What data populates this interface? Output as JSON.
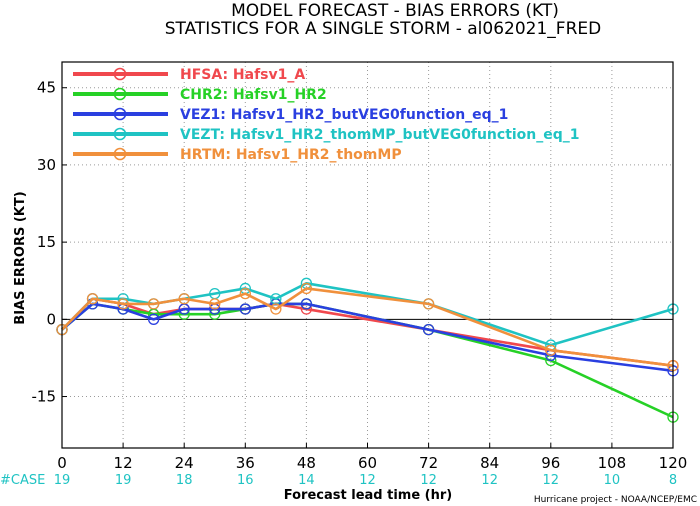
{
  "chart_data": {
    "type": "line",
    "title": "MODEL FORECAST - BIAS ERRORS (KT)",
    "subtitle": "STATISTICS FOR A SINGLE STORM - al062021_FRED",
    "xlabel": "Forecast lead time (hr)",
    "ylabel": "BIAS ERRORS (KT)",
    "xlim": [
      0,
      120
    ],
    "ylim": [
      -25,
      50
    ],
    "x_ticks": [
      0,
      12,
      24,
      36,
      48,
      60,
      72,
      84,
      96,
      108,
      120
    ],
    "y_ticks": [
      -15,
      0,
      15,
      30,
      45
    ],
    "grid": true,
    "legend_position": "top-left",
    "case_label": "#CASE",
    "case_counts": [
      19,
      19,
      18,
      16,
      14,
      12,
      12,
      12,
      12,
      10,
      8
    ],
    "credit": "Hurricane project - NOAA/NCEP/EMC",
    "series": [
      {
        "name": "HFSA: Hafsv1_A",
        "color": "#f0484d",
        "x": [
          0,
          6,
          12,
          18,
          24,
          30,
          36,
          42,
          48,
          72,
          96,
          120
        ],
        "y": [
          -2,
          4,
          3,
          1,
          2,
          2,
          2,
          3,
          2,
          -2,
          -6,
          -9
        ]
      },
      {
        "name": "CHR2: Hafsv1_HR2",
        "color": "#26d126",
        "x": [
          0,
          6,
          12,
          18,
          24,
          30,
          36,
          42,
          48,
          72,
          96,
          120
        ],
        "y": [
          -2,
          3,
          2,
          1,
          1,
          1,
          2,
          3,
          3,
          -2,
          -8,
          -19
        ]
      },
      {
        "name": "VEZ1: Hafsv1_HR2_butVEG0function_eq_1",
        "color": "#2a3fe0",
        "x": [
          0,
          6,
          12,
          18,
          24,
          30,
          36,
          42,
          48,
          72,
          96,
          120
        ],
        "y": [
          -2,
          3,
          2,
          0,
          2,
          2,
          2,
          3,
          3,
          -2,
          -7,
          -10
        ]
      },
      {
        "name": "VEZT: Hafsv1_HR2_thomMP_butVEG0function_eq_1",
        "color": "#1fc3c3",
        "x": [
          0,
          6,
          12,
          18,
          24,
          30,
          36,
          42,
          48,
          72,
          96,
          120
        ],
        "y": [
          -2,
          4,
          4,
          3,
          4,
          5,
          6,
          4,
          7,
          3,
          -5,
          2
        ]
      },
      {
        "name": "HRTM: Hafsv1_HR2_thomMP",
        "color": "#f0903c",
        "x": [
          0,
          6,
          12,
          18,
          24,
          30,
          36,
          42,
          48,
          72,
          96,
          120
        ],
        "y": [
          -2,
          4,
          3,
          3,
          4,
          3,
          5,
          2,
          6,
          3,
          -6,
          -9
        ]
      }
    ]
  }
}
